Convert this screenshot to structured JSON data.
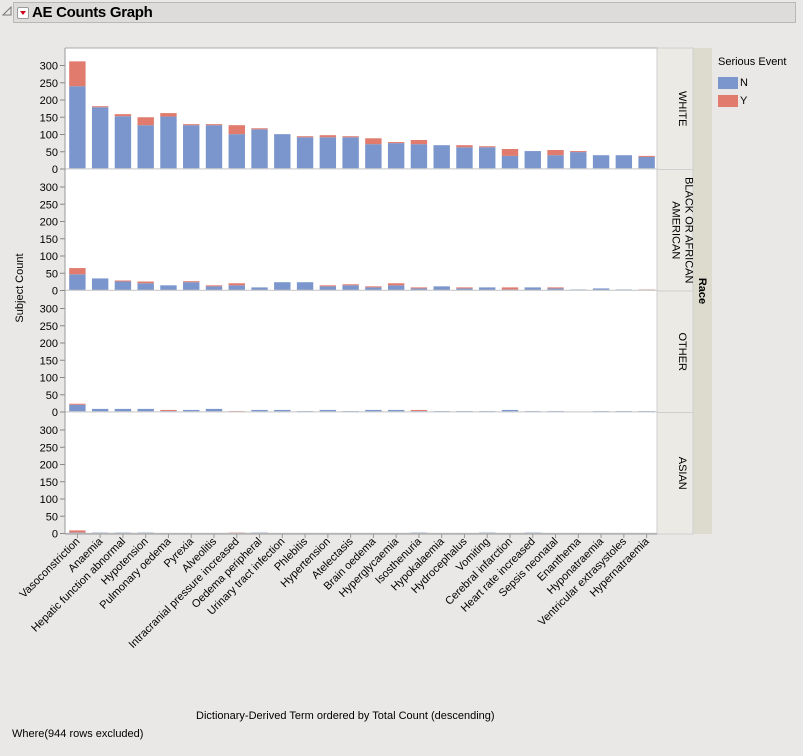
{
  "window": {
    "title": "AE Counts Graph"
  },
  "footer": {
    "where_text": "Where(944 rows excluded)"
  },
  "legend": {
    "title": "Serious Event",
    "items": [
      {
        "label": "N",
        "color": "#7b96cc"
      },
      {
        "label": "Y",
        "color": "#e07b6d"
      }
    ]
  },
  "chart_data": {
    "type": "bar",
    "stacked": true,
    "faceted_by": "Race",
    "title": "AE Counts Graph",
    "xlabel": "Dictionary-Derived Term ordered by Total Count (descending)",
    "ylabel": "Subject Count",
    "ylim": [
      0,
      320
    ],
    "yticks": [
      0,
      50,
      100,
      150,
      200,
      250,
      300
    ],
    "grid": false,
    "legend_position": "right",
    "categories": [
      "Vasoconstriction",
      "Anaemia",
      "Hepatic function abnormal",
      "Hypotension",
      "Pulmonary oedema",
      "Pyrexia",
      "Alveolitis",
      "Intracranial pressure increased",
      "Oedema peripheral",
      "Urinary tract infection",
      "Phlebitis",
      "Hypertension",
      "Atelectasis",
      "Brain oedema",
      "Hyperglycaemia",
      "Isosthenuria",
      "Hypokalaemia",
      "Hydrocephalus",
      "Vomiting",
      "Cerebral infarction",
      "Heart rate increased",
      "Sepsis neonatal",
      "Enanthema",
      "Hyponatraemia",
      "Ventricular extrasystoles",
      "Hypernatraemia"
    ],
    "facets": [
      {
        "label": "WHITE",
        "series": [
          {
            "name": "N",
            "values": [
              240,
              179,
              153,
              127,
              152,
              127,
              127,
              101,
              115,
              101,
              92,
              92,
              92,
              72,
              75,
              72,
              69,
              63,
              63,
              38,
              52,
              40,
              49,
              40,
              40,
              35
            ]
          },
          {
            "name": "Y",
            "values": [
              72,
              3,
              6,
              23,
              10,
              3,
              3,
              26,
              3,
              0,
              3,
              6,
              3,
              17,
              3,
              12,
              0,
              6,
              3,
              20,
              0,
              15,
              3,
              0,
              0,
              3
            ]
          }
        ]
      },
      {
        "label": "BLACK OR AFRICAN AMERICAN",
        "series": [
          {
            "name": "N",
            "values": [
              47,
              35,
              26,
              21,
              15,
              24,
              12,
              15,
              9,
              24,
              24,
              12,
              15,
              9,
              15,
              6,
              12,
              6,
              9,
              3,
              9,
              6,
              3,
              6,
              3,
              0
            ]
          },
          {
            "name": "Y",
            "values": [
              18,
              0,
              3,
              5,
              0,
              3,
              3,
              6,
              0,
              0,
              0,
              3,
              3,
              3,
              6,
              3,
              0,
              3,
              0,
              6,
              0,
              3,
              0,
              0,
              0,
              3
            ]
          }
        ]
      },
      {
        "label": "OTHER",
        "series": [
          {
            "name": "N",
            "values": [
              21,
              9,
              9,
              9,
              3,
              6,
              9,
              0,
              6,
              6,
              3,
              6,
              3,
              6,
              6,
              3,
              3,
              3,
              3,
              6,
              3,
              3,
              1,
              3,
              3,
              3
            ]
          },
          {
            "name": "Y",
            "values": [
              3,
              0,
              0,
              0,
              3,
              0,
              0,
              3,
              0,
              0,
              0,
              0,
              0,
              0,
              0,
              3,
              0,
              0,
              0,
              0,
              0,
              0,
              0,
              0,
              0,
              0
            ]
          }
        ]
      },
      {
        "label": "ASIAN",
        "series": [
          {
            "name": "N",
            "values": [
              3,
              3,
              3,
              3,
              0,
              0,
              0,
              0,
              3,
              0,
              0,
              0,
              0,
              0,
              0,
              3,
              0,
              0,
              3,
              0,
              3,
              0,
              0,
              0,
              0,
              0
            ]
          },
          {
            "name": "Y",
            "values": [
              6,
              0,
              0,
              0,
              0,
              0,
              0,
              3,
              0,
              0,
              0,
              0,
              0,
              0,
              0,
              0,
              0,
              0,
              0,
              0,
              0,
              0,
              0,
              0,
              0,
              0
            ]
          }
        ]
      }
    ],
    "outer_strip_label": "Race"
  }
}
